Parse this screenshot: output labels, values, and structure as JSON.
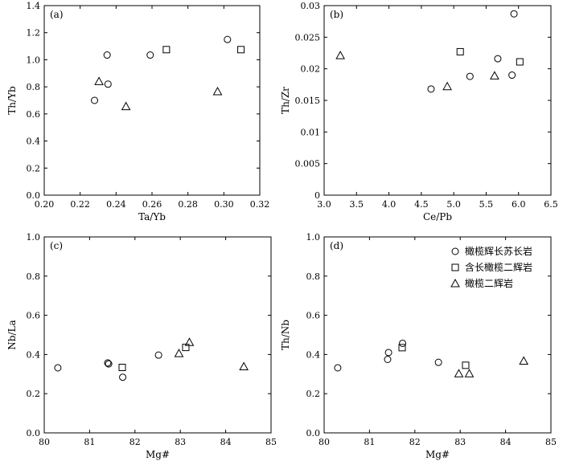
{
  "legend": {
    "items": [
      {
        "marker": "circle",
        "label": "橄榄辉长苏长岩"
      },
      {
        "marker": "square",
        "label": "含长橄榄二辉岩"
      },
      {
        "marker": "triangle",
        "label": "橄榄二辉岩"
      }
    ],
    "placement": "top-right of panel d"
  },
  "chart_data": [
    {
      "type": "scatter",
      "panel_label": "(a)",
      "xlabel": "Ta/Yb",
      "ylabel": "Th/Yb",
      "xlim": [
        0.2,
        0.32
      ],
      "ylim": [
        0,
        1.4
      ],
      "xticks": [
        "0.20",
        "0.22",
        "0.24",
        "0.26",
        "0.28",
        "0.30",
        "0.32"
      ],
      "yticks": [
        "0.0",
        "0.2",
        "0.4",
        "0.6",
        "0.8",
        "1.0",
        "1.2",
        "1.4"
      ],
      "grid": false,
      "series": [
        {
          "marker": "circle",
          "points": [
            [
              0.228,
              0.7
            ],
            [
              0.235,
              1.035
            ],
            [
              0.2355,
              0.82
            ],
            [
              0.259,
              1.035
            ],
            [
              0.302,
              1.15
            ]
          ]
        },
        {
          "marker": "square",
          "points": [
            [
              0.268,
              1.075
            ],
            [
              0.3095,
              1.075
            ]
          ]
        },
        {
          "marker": "triangle",
          "points": [
            [
              0.2305,
              0.84
            ],
            [
              0.2455,
              0.655
            ],
            [
              0.2965,
              0.765
            ]
          ]
        }
      ]
    },
    {
      "type": "scatter",
      "panel_label": "(b)",
      "xlabel": "Ce/Pb",
      "ylabel": "Th/Zr",
      "xlim": [
        3.0,
        6.5
      ],
      "ylim": [
        0,
        0.03
      ],
      "xticks": [
        "3.0",
        "3.5",
        "4.0",
        "4.5",
        "5.0",
        "5.5",
        "6.0",
        "6.5"
      ],
      "yticks": [
        "0",
        "0.005",
        "0.01",
        "0.015",
        "0.02",
        "0.025",
        "0.03"
      ],
      "grid": false,
      "series": [
        {
          "marker": "circle",
          "points": [
            [
              4.65,
              0.0168
            ],
            [
              5.25,
              0.0188
            ],
            [
              5.68,
              0.0216
            ],
            [
              5.9,
              0.019
            ],
            [
              5.93,
              0.0287
            ]
          ]
        },
        {
          "marker": "square",
          "points": [
            [
              5.1,
              0.0227
            ],
            [
              6.02,
              0.0211
            ]
          ]
        },
        {
          "marker": "triangle",
          "points": [
            [
              3.25,
              0.0221
            ],
            [
              4.9,
              0.0172
            ],
            [
              5.63,
              0.0189
            ]
          ]
        }
      ]
    },
    {
      "type": "scatter",
      "panel_label": "(c)",
      "xlabel": "Mg#",
      "ylabel": "Nb/La",
      "xlim": [
        80,
        85
      ],
      "ylim": [
        0,
        1.0
      ],
      "xticks": [
        "80",
        "81",
        "82",
        "83",
        "84",
        "85"
      ],
      "yticks": [
        "0.0",
        "0.2",
        "0.4",
        "0.6",
        "0.8",
        "1.0"
      ],
      "grid": false,
      "series": [
        {
          "marker": "circle",
          "points": [
            [
              80.3,
              0.332
            ],
            [
              81.4,
              0.357
            ],
            [
              81.42,
              0.352
            ],
            [
              81.73,
              0.284
            ],
            [
              82.52,
              0.397
            ]
          ]
        },
        {
          "marker": "square",
          "points": [
            [
              81.72,
              0.334
            ],
            [
              83.12,
              0.436
            ]
          ]
        },
        {
          "marker": "triangle",
          "points": [
            [
              82.97,
              0.405
            ],
            [
              83.2,
              0.462
            ],
            [
              84.4,
              0.338
            ]
          ]
        }
      ]
    },
    {
      "type": "scatter",
      "panel_label": "(d)",
      "xlabel": "Mg#",
      "ylabel": "Th/Nb",
      "xlim": [
        80,
        85
      ],
      "ylim": [
        0,
        1.0
      ],
      "xticks": [
        "80",
        "81",
        "82",
        "83",
        "84",
        "85"
      ],
      "yticks": [
        "0.0",
        "0.2",
        "0.4",
        "0.6",
        "0.8",
        "1.0"
      ],
      "grid": false,
      "series": [
        {
          "marker": "circle",
          "points": [
            [
              80.3,
              0.332
            ],
            [
              81.4,
              0.375
            ],
            [
              81.42,
              0.41
            ],
            [
              81.73,
              0.457
            ],
            [
              82.52,
              0.36
            ]
          ]
        },
        {
          "marker": "square",
          "points": [
            [
              81.72,
              0.435
            ],
            [
              83.12,
              0.345
            ]
          ]
        },
        {
          "marker": "triangle",
          "points": [
            [
              82.97,
              0.302
            ],
            [
              83.2,
              0.302
            ],
            [
              84.4,
              0.367
            ]
          ]
        }
      ]
    }
  ]
}
